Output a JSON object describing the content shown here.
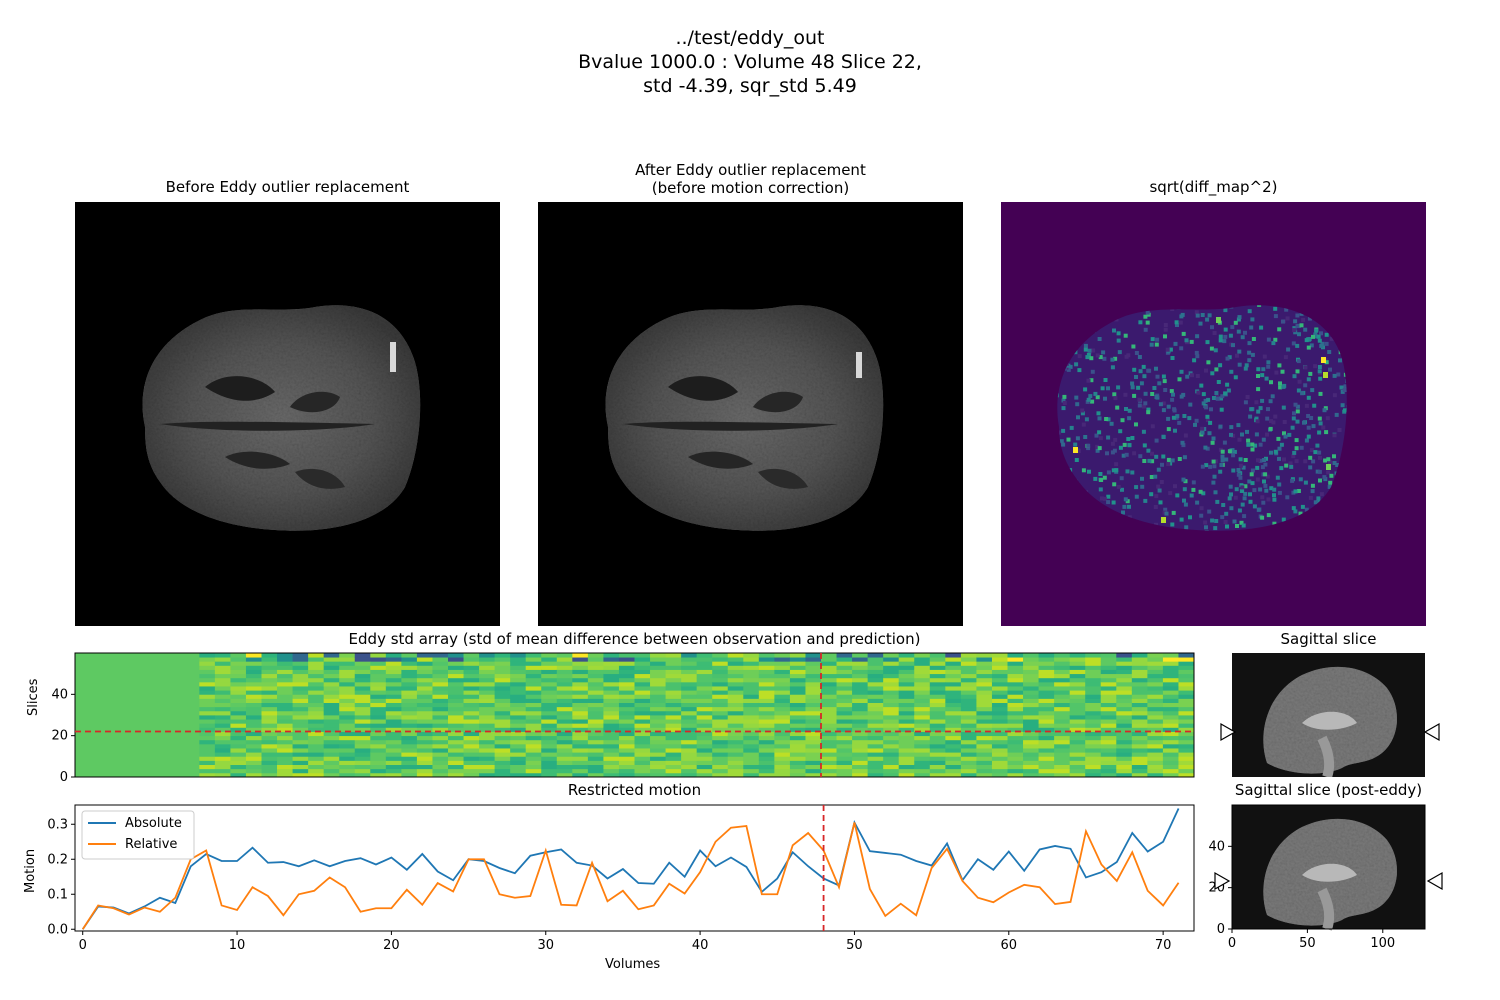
{
  "header": {
    "line1": "../test/eddy_out",
    "line2": "Bvalue 1000.0 : Volume 48 Slice 22,",
    "line3": "std -4.39, sqr_std 5.49"
  },
  "panels": {
    "before_title": "Before Eddy outlier replacement",
    "after_title_1": "After Eddy outlier replacement",
    "after_title_2": "(before motion correction)",
    "diff_title": "sqrt(diff_map^2)",
    "std_title": "Eddy std array (std of mean difference between observation and prediction)",
    "sagittal_title": "Sagittal slice",
    "sagittal_post_title": "Sagittal slice (post-eddy)",
    "motion_title": "Restricted motion"
  },
  "colors": {
    "absolute": "#1f77b4",
    "relative": "#ff7f0e",
    "marker": "#d62728",
    "diff_bg": "#440154",
    "std_base": "#5ec962"
  },
  "chart_data": [
    {
      "type": "heatmap",
      "title": "Eddy std array (std of mean difference between observation and prediction)",
      "ylabel": "Slices",
      "xlim": [
        0,
        72
      ],
      "ylim": [
        0,
        60
      ],
      "yticks": [
        0,
        20,
        40
      ],
      "selected_volume": 48,
      "selected_slice": 22
    },
    {
      "type": "line",
      "title": "Restricted motion",
      "xlabel": "Volumes",
      "ylabel": "Motion",
      "xlim": [
        -0.5,
        72
      ],
      "ylim": [
        -0.005,
        0.355
      ],
      "xticks": [
        0,
        10,
        20,
        30,
        40,
        50,
        60,
        70
      ],
      "yticks": [
        0.0,
        0.1,
        0.2,
        0.3
      ],
      "legend": "top-left",
      "marker_x": 48,
      "x": [
        0,
        1,
        2,
        3,
        4,
        5,
        6,
        7,
        8,
        9,
        10,
        11,
        12,
        13,
        14,
        15,
        16,
        17,
        18,
        19,
        20,
        21,
        22,
        23,
        24,
        25,
        26,
        27,
        28,
        29,
        30,
        31,
        32,
        33,
        34,
        35,
        36,
        37,
        38,
        39,
        40,
        41,
        42,
        43,
        44,
        45,
        46,
        47,
        48,
        49,
        50,
        51,
        52,
        53,
        54,
        55,
        56,
        57,
        58,
        59,
        60,
        61,
        62,
        63,
        64,
        65,
        66,
        67,
        68,
        69,
        70,
        71
      ],
      "series": [
        {
          "name": "Absolute",
          "values": [
            0.0,
            0.065,
            0.062,
            0.045,
            0.065,
            0.09,
            0.075,
            0.18,
            0.215,
            0.195,
            0.195,
            0.233,
            0.19,
            0.192,
            0.18,
            0.197,
            0.18,
            0.195,
            0.203,
            0.185,
            0.205,
            0.17,
            0.215,
            0.165,
            0.14,
            0.2,
            0.195,
            0.175,
            0.16,
            0.21,
            0.22,
            0.228,
            0.19,
            0.182,
            0.145,
            0.172,
            0.132,
            0.13,
            0.19,
            0.15,
            0.225,
            0.18,
            0.205,
            0.178,
            0.107,
            0.145,
            0.22,
            0.18,
            0.145,
            0.125,
            0.305,
            0.223,
            0.218,
            0.213,
            0.195,
            0.182,
            0.245,
            0.14,
            0.2,
            0.17,
            0.222,
            0.167,
            0.228,
            0.238,
            0.23,
            0.148,
            0.163,
            0.192,
            0.275,
            0.222,
            0.25,
            0.345
          ]
        },
        {
          "name": "Relative",
          "values": [
            0.0,
            0.068,
            0.06,
            0.042,
            0.062,
            0.05,
            0.09,
            0.2,
            0.225,
            0.068,
            0.055,
            0.12,
            0.095,
            0.04,
            0.1,
            0.11,
            0.148,
            0.12,
            0.05,
            0.06,
            0.06,
            0.113,
            0.07,
            0.132,
            0.108,
            0.2,
            0.2,
            0.1,
            0.09,
            0.095,
            0.225,
            0.07,
            0.068,
            0.19,
            0.08,
            0.11,
            0.057,
            0.068,
            0.13,
            0.102,
            0.163,
            0.25,
            0.29,
            0.295,
            0.1,
            0.1,
            0.24,
            0.275,
            0.225,
            0.12,
            0.305,
            0.115,
            0.038,
            0.073,
            0.04,
            0.175,
            0.23,
            0.138,
            0.09,
            0.077,
            0.105,
            0.127,
            0.12,
            0.072,
            0.078,
            0.28,
            0.185,
            0.138,
            0.22,
            0.11,
            0.068,
            0.133
          ]
        }
      ]
    },
    {
      "type": "heatmap",
      "title": "Sagittal slice (post-eddy)",
      "xlim": [
        0,
        128
      ],
      "ylim": [
        0,
        60
      ],
      "xticks": [
        0,
        50,
        100
      ],
      "yticks": [
        0,
        20,
        40
      ]
    }
  ]
}
